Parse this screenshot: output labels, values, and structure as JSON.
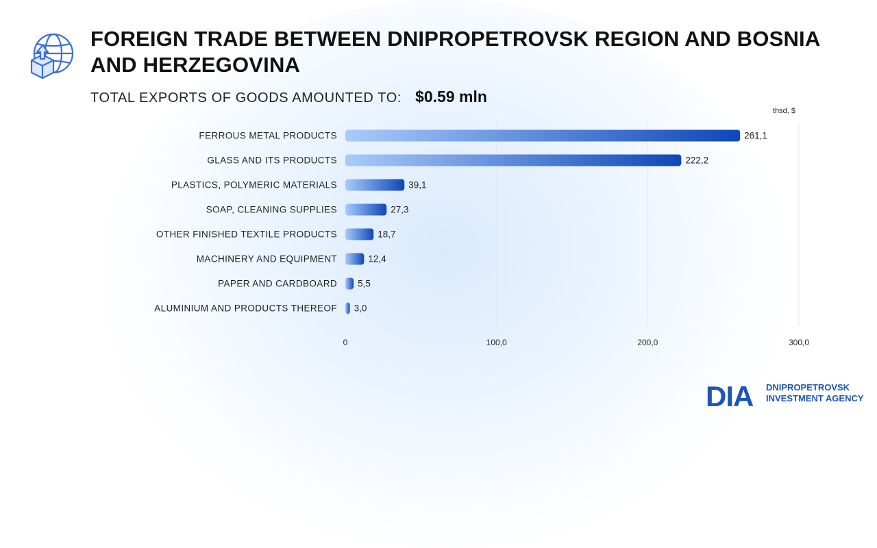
{
  "header": {
    "title": "FOREIGN TRADE BETWEEN DNIPROPETROVSK REGION AND BOSNIA AND HERZEGOVINA",
    "subtitle_label": "TOTAL EXPORTS OF GOODS AMOUNTED TO:",
    "subtitle_value": "$0.59 mln",
    "icon": "globe-export-box-icon"
  },
  "chart_data": {
    "type": "bar",
    "orientation": "horizontal",
    "unit_label": "thsd, $",
    "categories": [
      "FERROUS METAL PRODUCTS",
      "GLASS AND ITS PRODUCTS",
      "PLASTICS, POLYMERIC MATERIALS",
      "SOAP, CLEANING SUPPLIES",
      "OTHER FINISHED TEXTILE PRODUCTS",
      "MACHINERY AND EQUIPMENT",
      "PAPER AND CARDBOARD",
      "ALUMINIUM AND PRODUCTS THEREOF"
    ],
    "values": [
      261.1,
      222.2,
      39.1,
      27.3,
      18.7,
      12.4,
      5.5,
      3.0
    ],
    "value_labels": [
      "261,1",
      "222,2",
      "39,1",
      "27,3",
      "18,7",
      "12,4",
      "5,5",
      "3,0"
    ],
    "xlim": [
      0,
      300
    ],
    "xticks": [
      0,
      100,
      200,
      300
    ],
    "xtick_labels": [
      "0",
      "100,0",
      "200,0",
      "300,0"
    ],
    "grid": true,
    "colors": {
      "bar_start": "#a9cbfb",
      "bar_end": "#0f47b8",
      "grid": "#e4e7ec"
    }
  },
  "logo": {
    "mark": "DIA",
    "line1": "DNIPROPETROVSK",
    "line2": "INVESTMENT AGENCY",
    "color": "#1e56b6"
  }
}
